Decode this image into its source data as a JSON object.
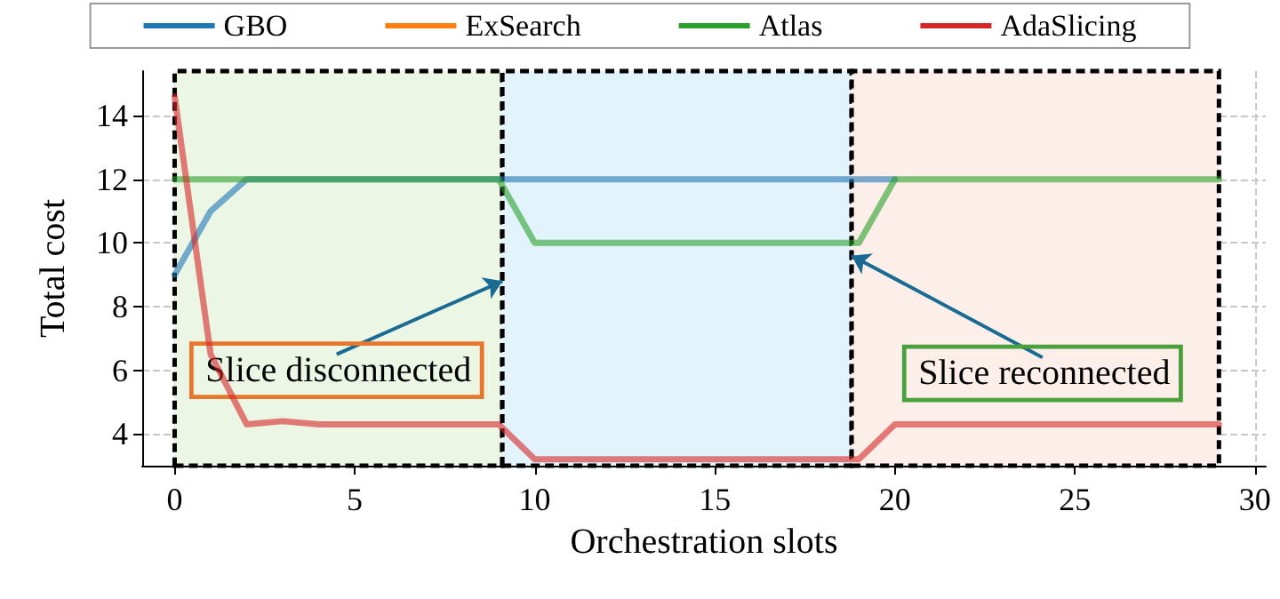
{
  "chart_data": {
    "type": "line",
    "xlabel": "Orchestration slots",
    "ylabel": "Total cost",
    "x": [
      0,
      1,
      2,
      3,
      4,
      5,
      6,
      7,
      8,
      9,
      10,
      11,
      12,
      13,
      14,
      15,
      16,
      17,
      18,
      19,
      20,
      21,
      22,
      23,
      24,
      25,
      26,
      27,
      28,
      29
    ],
    "series": [
      {
        "name": "GBO",
        "color": "#1f77b4",
        "values": [
          9,
          11,
          12,
          12,
          12,
          12,
          12,
          12,
          12,
          12,
          12,
          12,
          12,
          12,
          12,
          12,
          12,
          12,
          12,
          12,
          12,
          null,
          null,
          null,
          null,
          null,
          null,
          null,
          null,
          null
        ]
      },
      {
        "name": "ExSearch",
        "color": "#ff7f0e",
        "values": [
          null,
          null,
          null,
          null,
          null,
          null,
          null,
          null,
          null,
          null,
          null,
          null,
          null,
          null,
          null,
          null,
          null,
          null,
          null,
          null,
          null,
          null,
          null,
          null,
          null,
          null,
          null,
          null,
          null,
          null
        ]
      },
      {
        "name": "Atlas",
        "color": "#2ca02c",
        "values": [
          12,
          12,
          12,
          12,
          12,
          12,
          12,
          12,
          12,
          12,
          10,
          10,
          10,
          10,
          10,
          10,
          10,
          10,
          10,
          10,
          12,
          12,
          12,
          12,
          12,
          12,
          12,
          12,
          12,
          12
        ]
      },
      {
        "name": "AdaSlicing",
        "color": "#d62728",
        "values": [
          14.6,
          6.5,
          4.3,
          4.4,
          4.3,
          4.3,
          4.3,
          4.3,
          4.3,
          4.3,
          3.2,
          3.2,
          3.2,
          3.2,
          3.2,
          3.2,
          3.2,
          3.2,
          3.2,
          3.2,
          4.3,
          4.3,
          4.3,
          4.3,
          4.3,
          4.3,
          4.3,
          4.3,
          4.3,
          4.3
        ]
      }
    ],
    "xlim": [
      -0.9,
      30.3
    ],
    "xticks": [
      0,
      5,
      10,
      15,
      20,
      25,
      30
    ],
    "ylim": [
      3.0,
      15.4
    ],
    "yticks": [
      4,
      6,
      8,
      10,
      12,
      14
    ],
    "bands": [
      {
        "axis": "x",
        "from": 0,
        "to": 9.1,
        "color": "#ecf6e5"
      },
      {
        "axis": "x",
        "from": 9.1,
        "to": 18.8,
        "color": "#e3f3fc"
      },
      {
        "axis": "x",
        "from": 18.8,
        "to": 29,
        "color": "#fcefe9"
      }
    ],
    "annotations": [
      {
        "text": "Slice disconnected",
        "x": 9.1,
        "y": 8.8
      },
      {
        "text": "Slice reconnected",
        "x": 18.8,
        "y": 9.6
      }
    ],
    "grid": true,
    "legend": "top",
    "marker": "none",
    "line_style": "solid"
  }
}
